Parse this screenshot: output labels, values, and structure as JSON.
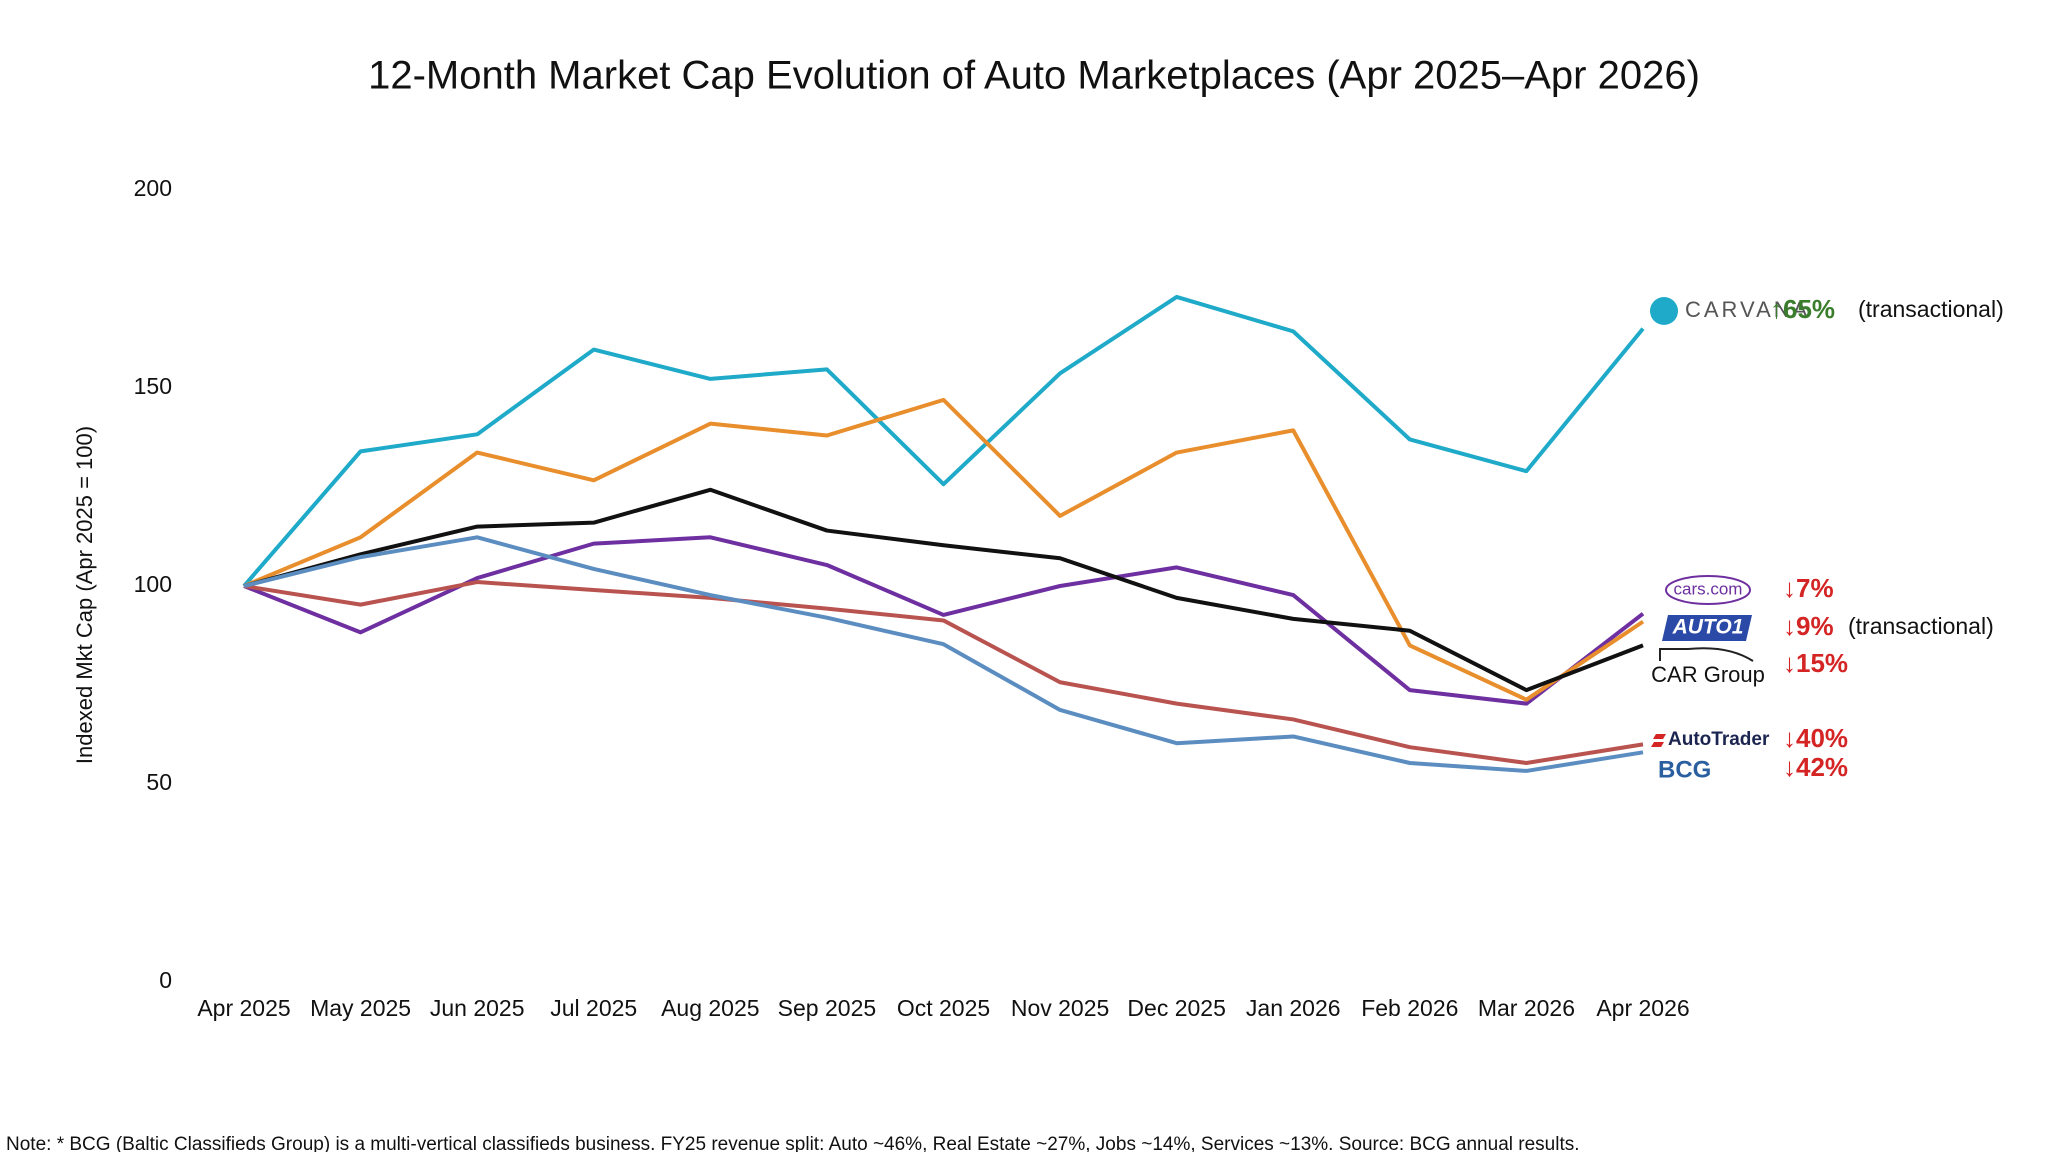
{
  "chart_data": {
    "type": "line",
    "title": "12-Month Market Cap Evolution of Auto Marketplaces (Apr 2025–Apr 2026)",
    "y_label": "Indexed Mkt Cap (Apr 2025 = 100)",
    "categories": [
      "Apr 2025",
      "May 2025",
      "Jun 2025",
      "Jul 2025",
      "Aug 2025",
      "Sep 2025",
      "Oct 2025",
      "Nov 2025",
      "Dec 2025",
      "Jan 2026",
      "Feb 2026",
      "Mar 2026",
      "Apr 2026"
    ],
    "ylim": [
      0,
      200
    ],
    "yticks": [
      0,
      50,
      100,
      150,
      200
    ],
    "grid": false,
    "series": [
      {
        "name": "CARVANA",
        "color": "#1eaac8",
        "change": "↑65%",
        "change_color": "#3a7d2c",
        "note": "(transactional)",
        "values": [
          100,
          134,
          138.3,
          159.7,
          152.3,
          154.7,
          125.7,
          153.7,
          173,
          164.3,
          137,
          129,
          165
        ]
      },
      {
        "name": "cars.com",
        "color": "#6e2fa0",
        "change": "↓7%",
        "change_color": "#d42424",
        "values": [
          100,
          88.3,
          102,
          110.7,
          112.3,
          105.3,
          92.7,
          100,
          104.7,
          97.7,
          73.7,
          70.3,
          93
        ]
      },
      {
        "name": "AUTO1",
        "color": "#e98e2c",
        "change": "↓9%",
        "change_color": "#d42424",
        "note": "(transactional)",
        "values": [
          100,
          112.3,
          133.7,
          126.7,
          141,
          138,
          147,
          117.7,
          133.7,
          139.3,
          85,
          71.3,
          91
        ]
      },
      {
        "name": "CAR Group",
        "color": "#111111",
        "change": "↓15%",
        "change_color": "#d42424",
        "values": [
          100,
          108,
          115,
          116,
          124.3,
          114,
          110.3,
          107,
          97,
          91.7,
          88.7,
          73.7,
          85
        ]
      },
      {
        "name": "AutoTrader",
        "color": "#b9534f",
        "change": "↓40%",
        "change_color": "#d42424",
        "values": [
          100,
          95.3,
          101,
          99,
          97,
          94.3,
          91.3,
          75.7,
          70.3,
          66.3,
          59.3,
          55.3,
          60
        ]
      },
      {
        "name": "BCG",
        "color": "#5b8dc0",
        "change": "↓42%",
        "change_color": "#d42424",
        "values": [
          100,
          107.3,
          112.3,
          104.3,
          97.7,
          92,
          85.3,
          68.7,
          60.3,
          62,
          55.3,
          53.3,
          58
        ]
      }
    ]
  },
  "footnote": "Note: * BCG (Baltic Classifieds Group) is a multi-vertical classifieds business. FY25 revenue split: Auto ~46%, Real Estate ~27%, Jobs ~14%, Services ~13%. Source: BCG annual results."
}
